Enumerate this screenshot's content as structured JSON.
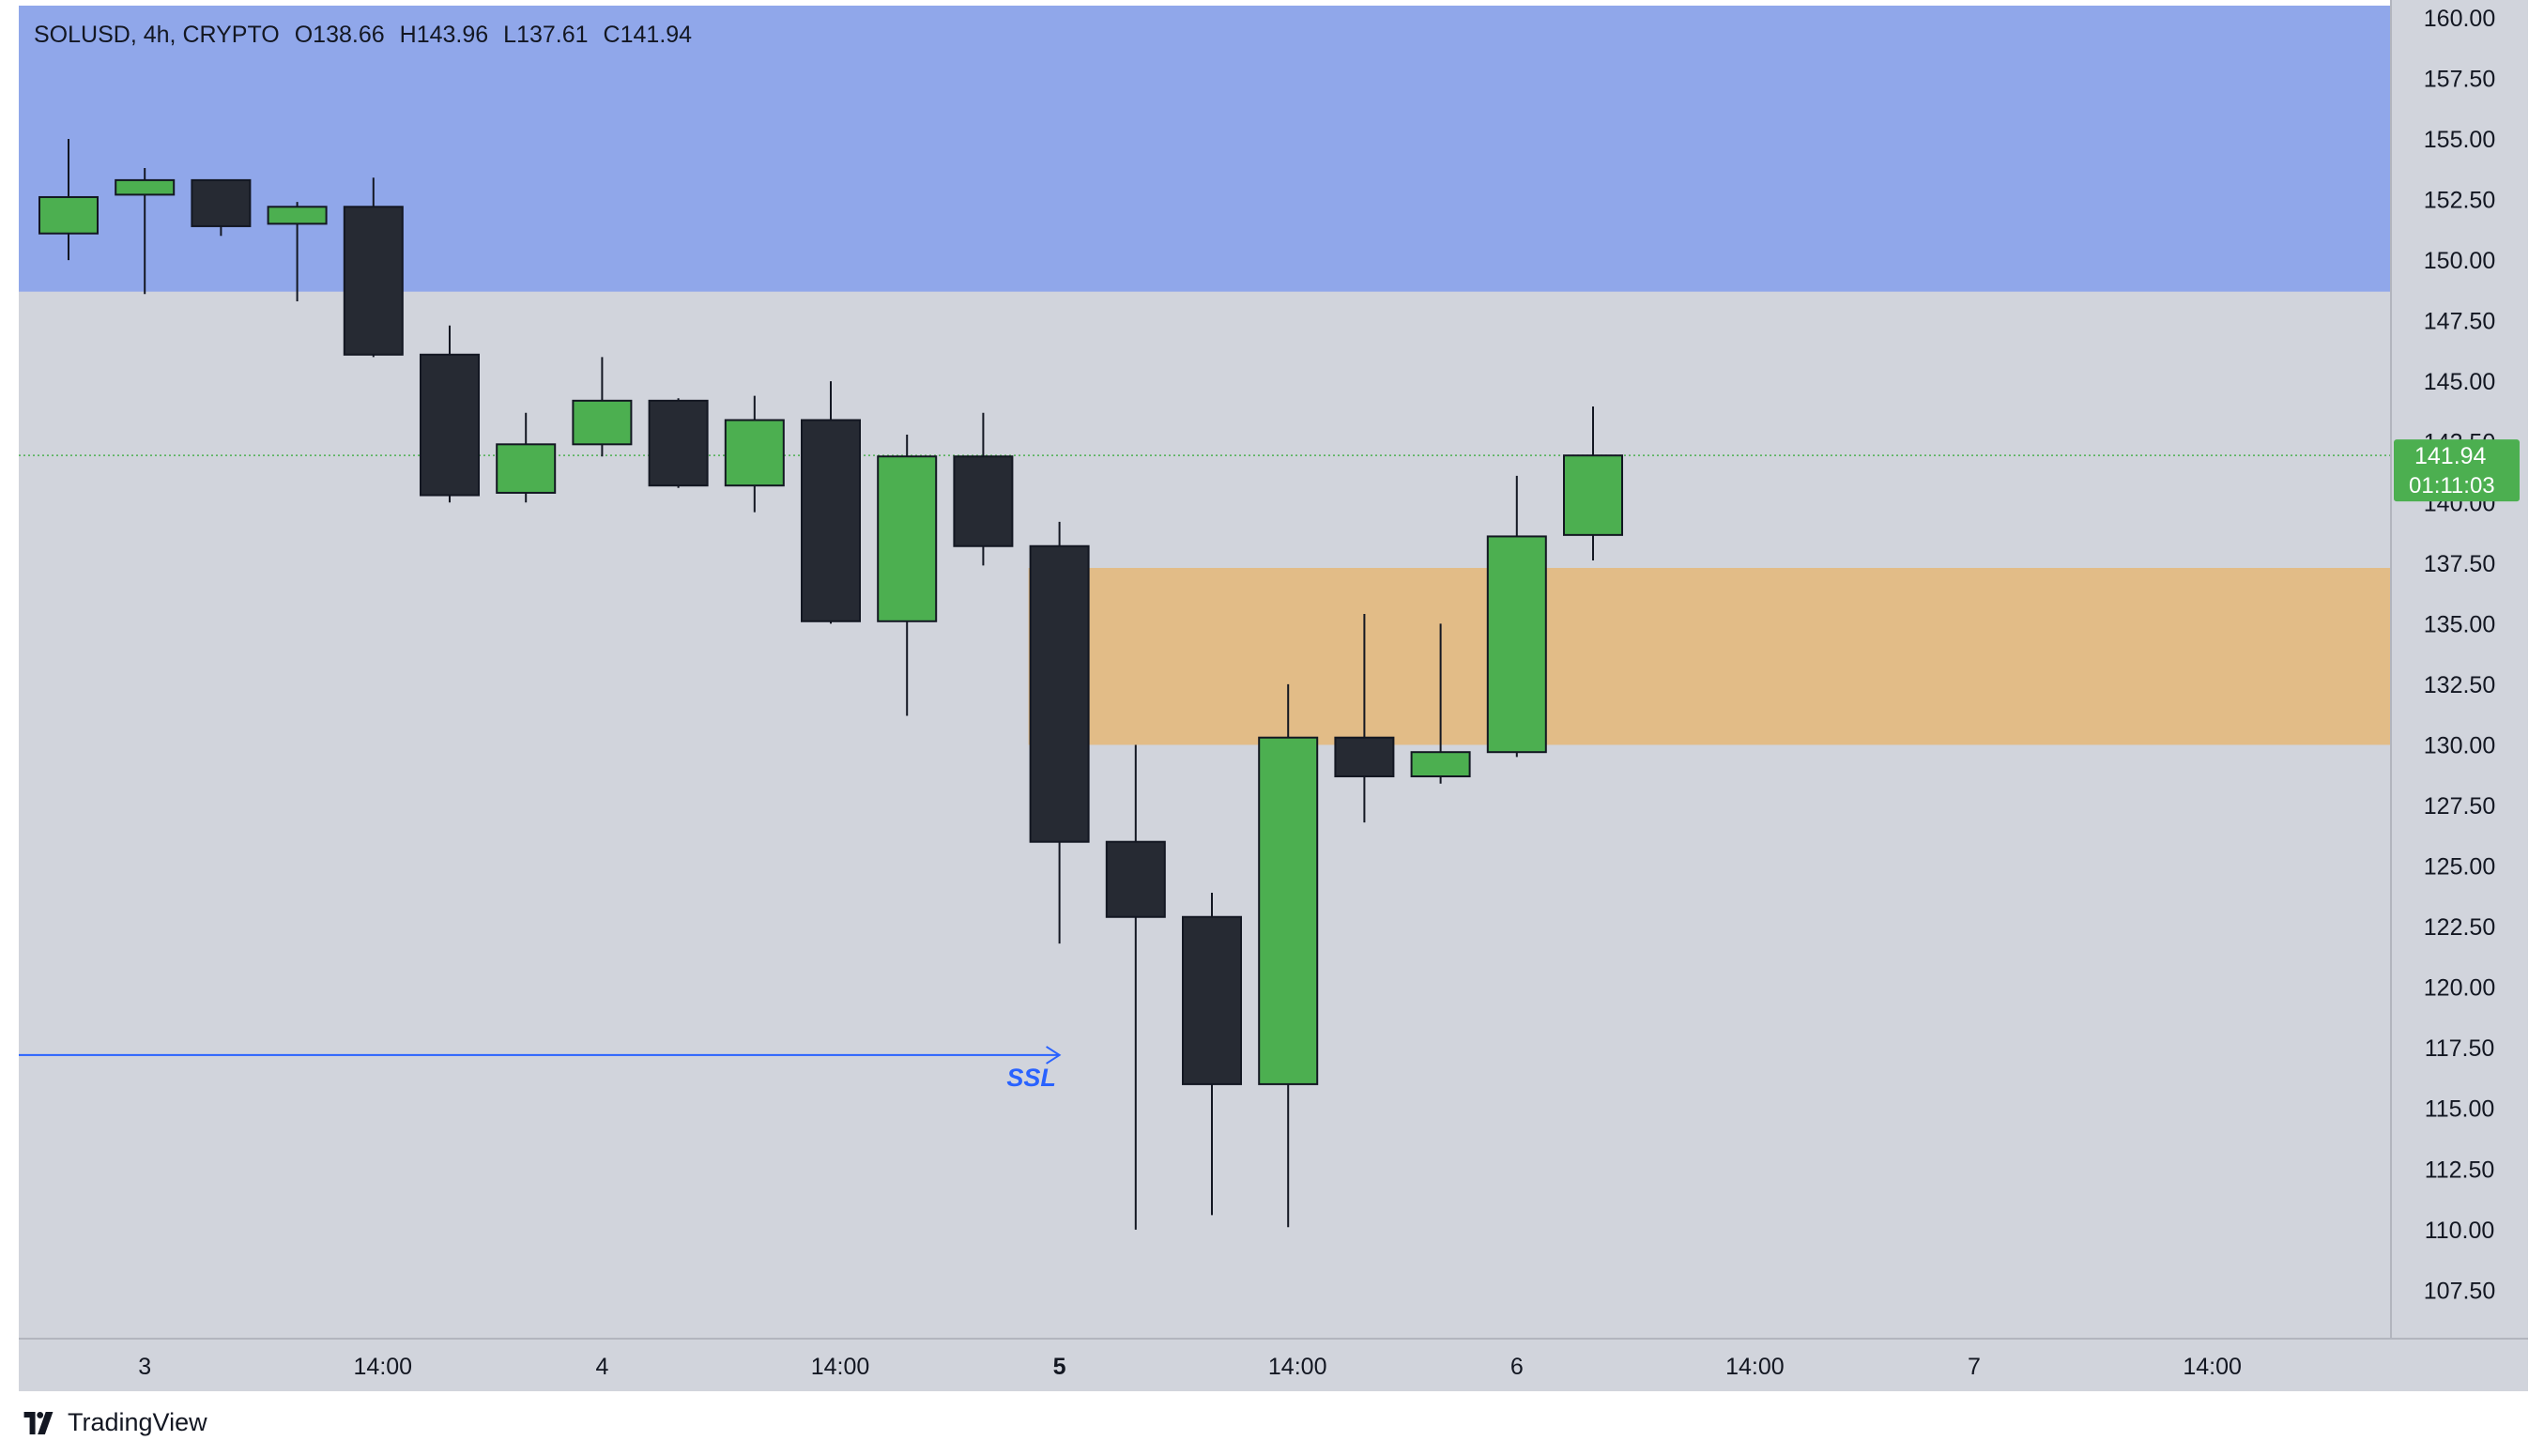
{
  "header": {
    "symbol": "SOLUSD",
    "interval": "4h",
    "exchange": "CRYPTO",
    "open_label": "O138.66",
    "high_label": "H143.96",
    "low_label": "L137.61",
    "close_label": "C141.94"
  },
  "price_tag": {
    "price": "141.94",
    "countdown": "01:11:03"
  },
  "brand": "TradingView",
  "annotations": {
    "ssl_label": "SSL",
    "ssl_level": 117.2,
    "supply_zone": {
      "top": 160.5,
      "bottom": 148.7,
      "from_candle": 0
    },
    "demand_zone": {
      "top": 137.3,
      "bottom": 130.0,
      "from_candle": 13
    }
  },
  "colors": {
    "background": "#d1d4dc",
    "supply_zone": "#90a7ea",
    "demand_zone": "#e2bc87",
    "bull": "#4caf50",
    "bear": "#262a33",
    "ssl": "#2962ff",
    "last_price": "#4caf50",
    "axis_text": "#131722"
  },
  "chart_data": {
    "type": "candlestick",
    "title": "SOLUSD, 4h, CRYPTO",
    "ylim": [
      105.5,
      160.5
    ],
    "y_ticks": [
      "160.00",
      "157.50",
      "155.00",
      "152.50",
      "150.00",
      "147.50",
      "145.00",
      "142.50",
      "140.00",
      "137.50",
      "135.00",
      "132.50",
      "130.00",
      "127.50",
      "125.00",
      "122.50",
      "120.00",
      "117.50",
      "115.00",
      "112.50",
      "110.00",
      "107.50"
    ],
    "x_ticks": [
      {
        "label": "3",
        "index": 1,
        "bold": false
      },
      {
        "label": "14:00",
        "index": 4,
        "bold": false
      },
      {
        "label": "4",
        "index": 7,
        "bold": false
      },
      {
        "label": "14:00",
        "index": 10,
        "bold": false
      },
      {
        "label": "5",
        "index": 13,
        "bold": true
      },
      {
        "label": "14:00",
        "index": 16,
        "bold": false
      },
      {
        "label": "6",
        "index": 19,
        "bold": false
      },
      {
        "label": "14:00",
        "index": 22,
        "bold": false
      },
      {
        "label": "7",
        "index": 25,
        "bold": false
      },
      {
        "label": "14:00",
        "index": 28,
        "bold": false
      }
    ],
    "candles": [
      {
        "o": 151.1,
        "h": 155.0,
        "l": 150.0,
        "c": 152.6
      },
      {
        "o": 152.7,
        "h": 153.8,
        "l": 148.6,
        "c": 153.3
      },
      {
        "o": 153.3,
        "h": 153.3,
        "l": 151.0,
        "c": 151.4
      },
      {
        "o": 151.5,
        "h": 152.4,
        "l": 148.3,
        "c": 152.2
      },
      {
        "o": 152.2,
        "h": 153.4,
        "l": 146.0,
        "c": 146.1
      },
      {
        "o": 146.1,
        "h": 147.3,
        "l": 140.0,
        "c": 140.3
      },
      {
        "o": 140.4,
        "h": 143.7,
        "l": 140.0,
        "c": 142.4
      },
      {
        "o": 142.4,
        "h": 146.0,
        "l": 141.9,
        "c": 144.2
      },
      {
        "o": 144.2,
        "h": 144.3,
        "l": 140.6,
        "c": 140.7
      },
      {
        "o": 140.7,
        "h": 144.4,
        "l": 139.6,
        "c": 143.4
      },
      {
        "o": 143.4,
        "h": 145.0,
        "l": 135.0,
        "c": 135.1
      },
      {
        "o": 135.1,
        "h": 142.8,
        "l": 131.2,
        "c": 141.9
      },
      {
        "o": 141.9,
        "h": 143.7,
        "l": 137.4,
        "c": 138.2
      },
      {
        "o": 138.2,
        "h": 139.2,
        "l": 121.8,
        "c": 126.0
      },
      {
        "o": 126.0,
        "h": 130.0,
        "l": 110.0,
        "c": 122.9
      },
      {
        "o": 122.9,
        "h": 123.9,
        "l": 110.6,
        "c": 116.0
      },
      {
        "o": 116.0,
        "h": 132.5,
        "l": 110.1,
        "c": 130.3
      },
      {
        "o": 130.3,
        "h": 135.4,
        "l": 126.8,
        "c": 128.7
      },
      {
        "o": 128.7,
        "h": 135.0,
        "l": 128.4,
        "c": 129.7
      },
      {
        "o": 129.7,
        "h": 141.1,
        "l": 129.5,
        "c": 138.6
      },
      {
        "o": 138.66,
        "h": 143.96,
        "l": 137.61,
        "c": 141.94
      }
    ],
    "last_price": 141.94
  }
}
